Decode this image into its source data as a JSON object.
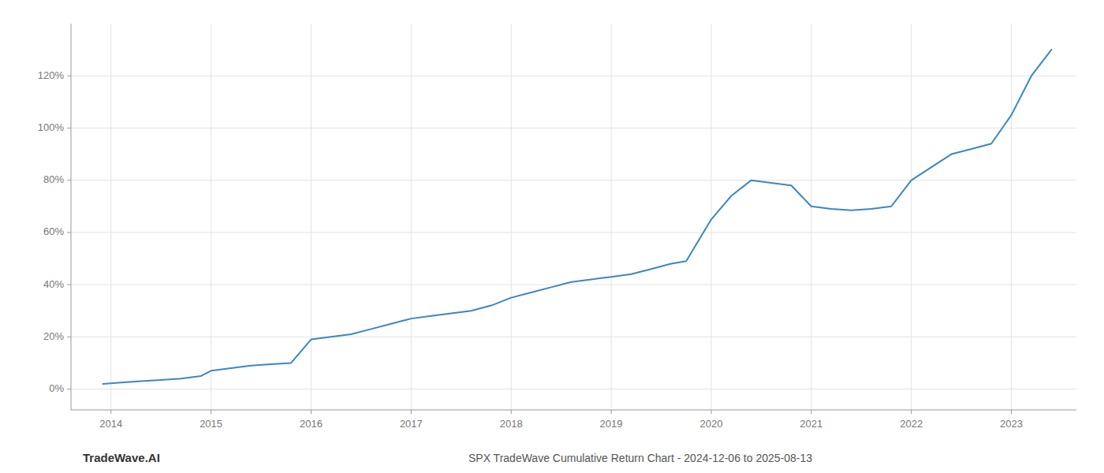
{
  "chart_data": {
    "type": "line",
    "title": "SPX TradeWave Cumulative Return Chart - 2024-12-06 to 2025-08-13",
    "annotations": [
      "TradeWave.AI"
    ],
    "x": [
      2013.92,
      2014.1,
      2014.3,
      2014.5,
      2014.7,
      2014.9,
      2015.0,
      2015.2,
      2015.4,
      2015.6,
      2015.8,
      2016.0,
      2016.2,
      2016.4,
      2016.6,
      2016.8,
      2017.0,
      2017.2,
      2017.4,
      2017.6,
      2017.8,
      2018.0,
      2018.2,
      2018.4,
      2018.6,
      2018.8,
      2019.0,
      2019.2,
      2019.4,
      2019.6,
      2019.75,
      2020.0,
      2020.2,
      2020.4,
      2020.6,
      2020.8,
      2021.0,
      2021.2,
      2021.4,
      2021.6,
      2021.8,
      2022.0,
      2022.2,
      2022.4,
      2022.6,
      2022.8,
      2023.0,
      2023.2,
      2023.4
    ],
    "values": [
      2,
      2.5,
      3,
      3.5,
      4,
      5,
      7,
      8,
      9,
      9.5,
      10,
      19,
      20,
      21,
      23,
      25,
      27,
      28,
      29,
      30,
      32,
      35,
      37,
      39,
      41,
      42,
      43,
      44,
      46,
      48,
      49,
      65,
      74,
      80,
      79,
      78,
      70,
      69,
      68.5,
      69,
      70,
      80,
      85,
      90,
      92,
      94,
      105,
      120,
      130
    ],
    "color": "#3a86c8",
    "xlim": [
      2013.6,
      2023.65
    ],
    "ylim": [
      -8,
      140
    ],
    "xticks": [
      2014,
      2015,
      2016,
      2017,
      2018,
      2019,
      2020,
      2021,
      2022,
      2023
    ],
    "yticks": [
      {
        "value": 0,
        "label": "0%"
      },
      {
        "value": 20,
        "label": "20%"
      },
      {
        "value": 40,
        "label": "40%"
      },
      {
        "value": 60,
        "label": "60%"
      },
      {
        "value": 80,
        "label": "80%"
      },
      {
        "value": 100,
        "label": "100%"
      },
      {
        "value": 120,
        "label": "120%"
      }
    ],
    "grid": true
  }
}
